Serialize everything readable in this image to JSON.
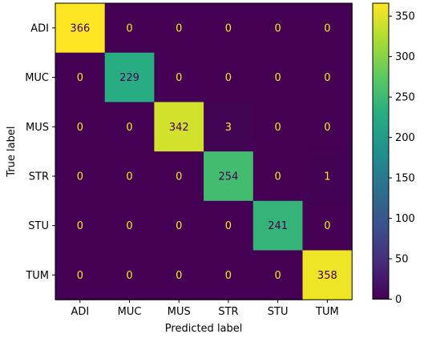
{
  "chart_data": {
    "type": "heatmap",
    "title": "",
    "xlabel": "Predicted label",
    "ylabel": "True label",
    "x_categories": [
      "ADI",
      "MUC",
      "MUS",
      "STR",
      "STU",
      "TUM"
    ],
    "y_categories": [
      "ADI",
      "MUC",
      "MUS",
      "STR",
      "STU",
      "TUM"
    ],
    "values": [
      [
        366,
        0,
        0,
        0,
        0,
        0
      ],
      [
        0,
        229,
        0,
        0,
        0,
        0
      ],
      [
        0,
        0,
        342,
        3,
        0,
        0
      ],
      [
        0,
        0,
        0,
        254,
        0,
        1
      ],
      [
        0,
        0,
        0,
        0,
        241,
        0
      ],
      [
        0,
        0,
        0,
        0,
        0,
        358
      ]
    ],
    "colormap": "viridis",
    "vmin": 0,
    "vmax": 366,
    "colorbar_ticks": [
      0,
      50,
      100,
      150,
      200,
      250,
      300,
      350
    ],
    "text_color_low": "#fde725",
    "text_color_high": "#440154"
  }
}
